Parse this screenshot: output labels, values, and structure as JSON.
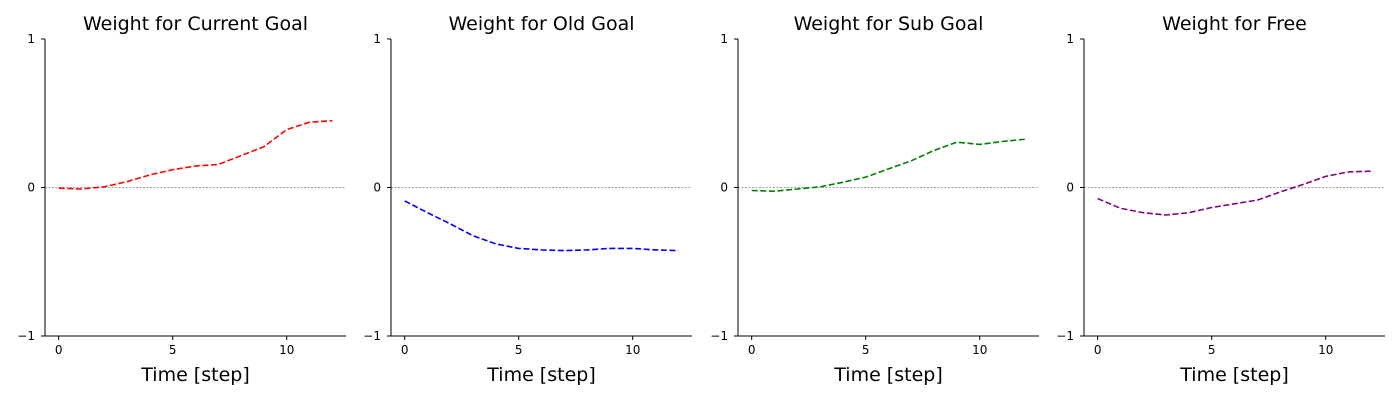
{
  "chart_data": [
    {
      "type": "line",
      "title": "Weight for Current Goal",
      "xlabel": "Time [step]",
      "ylabel": "",
      "xlim": [
        -0.6,
        12.6
      ],
      "ylim": [
        -1,
        1
      ],
      "xticks": [
        0,
        5,
        10
      ],
      "yticks": [
        -1,
        0,
        1
      ],
      "color": "#ff0000",
      "x": [
        0,
        1,
        2,
        3,
        4,
        5,
        6,
        7,
        8,
        9,
        10,
        11,
        12
      ],
      "y": [
        -0.005,
        -0.01,
        0.005,
        0.04,
        0.085,
        0.12,
        0.145,
        0.155,
        0.215,
        0.275,
        0.39,
        0.44,
        0.45
      ]
    },
    {
      "type": "line",
      "title": "Weight for Old Goal",
      "xlabel": "Time [step]",
      "ylabel": "",
      "xlim": [
        -0.6,
        12.6
      ],
      "ylim": [
        -1,
        1
      ],
      "xticks": [
        0,
        5,
        10
      ],
      "yticks": [
        -1,
        0,
        1
      ],
      "color": "#0000ff",
      "x": [
        0,
        1,
        2,
        3,
        4,
        5,
        6,
        7,
        8,
        9,
        10,
        11,
        12
      ],
      "y": [
        -0.09,
        -0.17,
        -0.245,
        -0.325,
        -0.38,
        -0.41,
        -0.42,
        -0.425,
        -0.42,
        -0.41,
        -0.41,
        -0.42,
        -0.425
      ]
    },
    {
      "type": "line",
      "title": "Weight for Sub Goal",
      "xlabel": "Time [step]",
      "ylabel": "",
      "xlim": [
        -0.6,
        12.6
      ],
      "ylim": [
        -1,
        1
      ],
      "xticks": [
        0,
        5,
        10
      ],
      "yticks": [
        -1,
        0,
        1
      ],
      "color": "#008000",
      "x": [
        0,
        1,
        2,
        3,
        4,
        5,
        6,
        7,
        8,
        9,
        10,
        11,
        12
      ],
      "y": [
        -0.02,
        -0.025,
        -0.01,
        0.005,
        0.035,
        0.07,
        0.125,
        0.18,
        0.25,
        0.305,
        0.29,
        0.31,
        0.325
      ]
    },
    {
      "type": "line",
      "title": "Weight for Free",
      "xlabel": "Time [step]",
      "ylabel": "",
      "xlim": [
        -0.6,
        12.6
      ],
      "ylim": [
        -1,
        1
      ],
      "xticks": [
        0,
        5,
        10
      ],
      "yticks": [
        -1,
        0,
        1
      ],
      "color": "#800080",
      "x": [
        0,
        1,
        2,
        3,
        4,
        5,
        6,
        7,
        8,
        9,
        10,
        11,
        12
      ],
      "y": [
        -0.075,
        -0.14,
        -0.17,
        -0.185,
        -0.17,
        -0.135,
        -0.11,
        -0.085,
        -0.03,
        0.02,
        0.075,
        0.105,
        0.11
      ]
    }
  ]
}
